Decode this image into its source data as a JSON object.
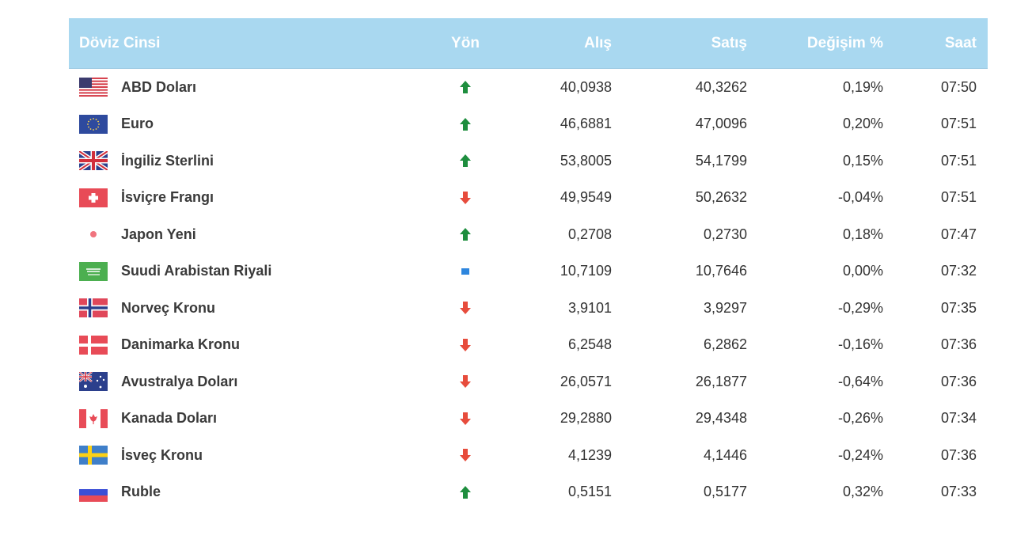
{
  "table": {
    "headers": {
      "name": "Döviz Cinsi",
      "direction": "Yön",
      "buy": "Alış",
      "sell": "Satış",
      "change": "Değişim %",
      "time": "Saat"
    },
    "colors": {
      "header_bg": "#a9d8f0",
      "up": "#1e8e3e",
      "down": "#e74c3c",
      "flat": "#2e86de"
    },
    "rows": [
      {
        "name": "ABD Doları",
        "flag": "us-flag-icon",
        "direction": "up",
        "buy": "40,0938",
        "sell": "40,3262",
        "change": "0,19%",
        "time": "07:50"
      },
      {
        "name": "Euro",
        "flag": "eu-flag-icon",
        "direction": "up",
        "buy": "46,6881",
        "sell": "47,0096",
        "change": "0,20%",
        "time": "07:51"
      },
      {
        "name": "İngiliz Sterlini",
        "flag": "uk-flag-icon",
        "direction": "up",
        "buy": "53,8005",
        "sell": "54,1799",
        "change": "0,15%",
        "time": "07:51"
      },
      {
        "name": "İsviçre Frangı",
        "flag": "ch-flag-icon",
        "direction": "down",
        "buy": "49,9549",
        "sell": "50,2632",
        "change": "-0,04%",
        "time": "07:51"
      },
      {
        "name": "Japon Yeni",
        "flag": "jp-flag-icon",
        "direction": "up",
        "buy": "0,2708",
        "sell": "0,2730",
        "change": "0,18%",
        "time": "07:47"
      },
      {
        "name": "Suudi Arabistan Riyali",
        "flag": "sa-flag-icon",
        "direction": "flat",
        "buy": "10,7109",
        "sell": "10,7646",
        "change": "0,00%",
        "time": "07:32"
      },
      {
        "name": "Norveç Kronu",
        "flag": "no-flag-icon",
        "direction": "down",
        "buy": "3,9101",
        "sell": "3,9297",
        "change": "-0,29%",
        "time": "07:35"
      },
      {
        "name": "Danimarka Kronu",
        "flag": "dk-flag-icon",
        "direction": "down",
        "buy": "6,2548",
        "sell": "6,2862",
        "change": "-0,16%",
        "time": "07:36"
      },
      {
        "name": "Avustralya Doları",
        "flag": "au-flag-icon",
        "direction": "down",
        "buy": "26,0571",
        "sell": "26,1877",
        "change": "-0,64%",
        "time": "07:36"
      },
      {
        "name": "Kanada Doları",
        "flag": "ca-flag-icon",
        "direction": "down",
        "buy": "29,2880",
        "sell": "29,4348",
        "change": "-0,26%",
        "time": "07:34"
      },
      {
        "name": "İsveç Kronu",
        "flag": "se-flag-icon",
        "direction": "down",
        "buy": "4,1239",
        "sell": "4,1446",
        "change": "-0,24%",
        "time": "07:36"
      },
      {
        "name": "Ruble",
        "flag": "ru-flag-icon",
        "direction": "up",
        "buy": "0,5151",
        "sell": "0,5177",
        "change": "0,32%",
        "time": "07:33"
      }
    ]
  }
}
